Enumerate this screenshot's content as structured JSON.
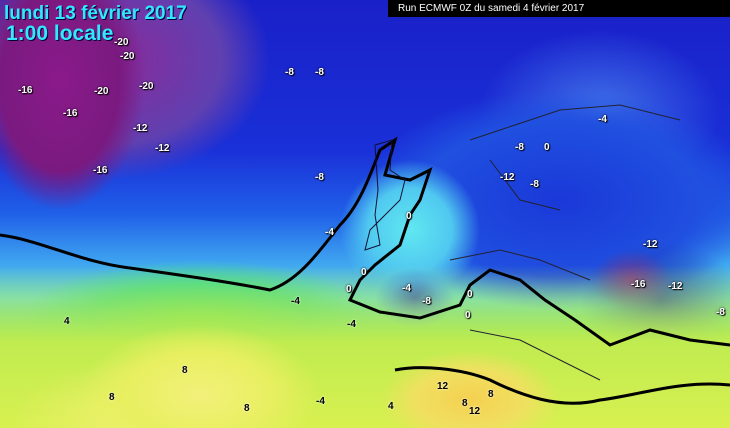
{
  "header": {
    "date": "lundi 13 février 2017",
    "time": "1:00 locale",
    "run": "Run ECMWF 0Z du samedi 4 février 2017"
  },
  "colors": {
    "header_text": "#30e8ff",
    "cold_extreme": "#8a1a8a",
    "cold": "#1a30d8",
    "zero_line": "#000000",
    "mild": "#60e060",
    "warm": "#f2f07a"
  },
  "labels": [
    "-20",
    "-20",
    "-16",
    "-20",
    "-20",
    "-16",
    "-12",
    "-12",
    "-16",
    "-8",
    "-8",
    "-8",
    "-4",
    "-4",
    "0",
    "-8",
    "-12",
    "-8",
    "0",
    "0",
    "0",
    "-4",
    "-8",
    "0",
    "0",
    "-12",
    "-16",
    "-12",
    "-8",
    "-4",
    "-4",
    "4",
    "8",
    "8",
    "8",
    "-4",
    "4",
    "12",
    "8",
    "12",
    "8"
  ]
}
